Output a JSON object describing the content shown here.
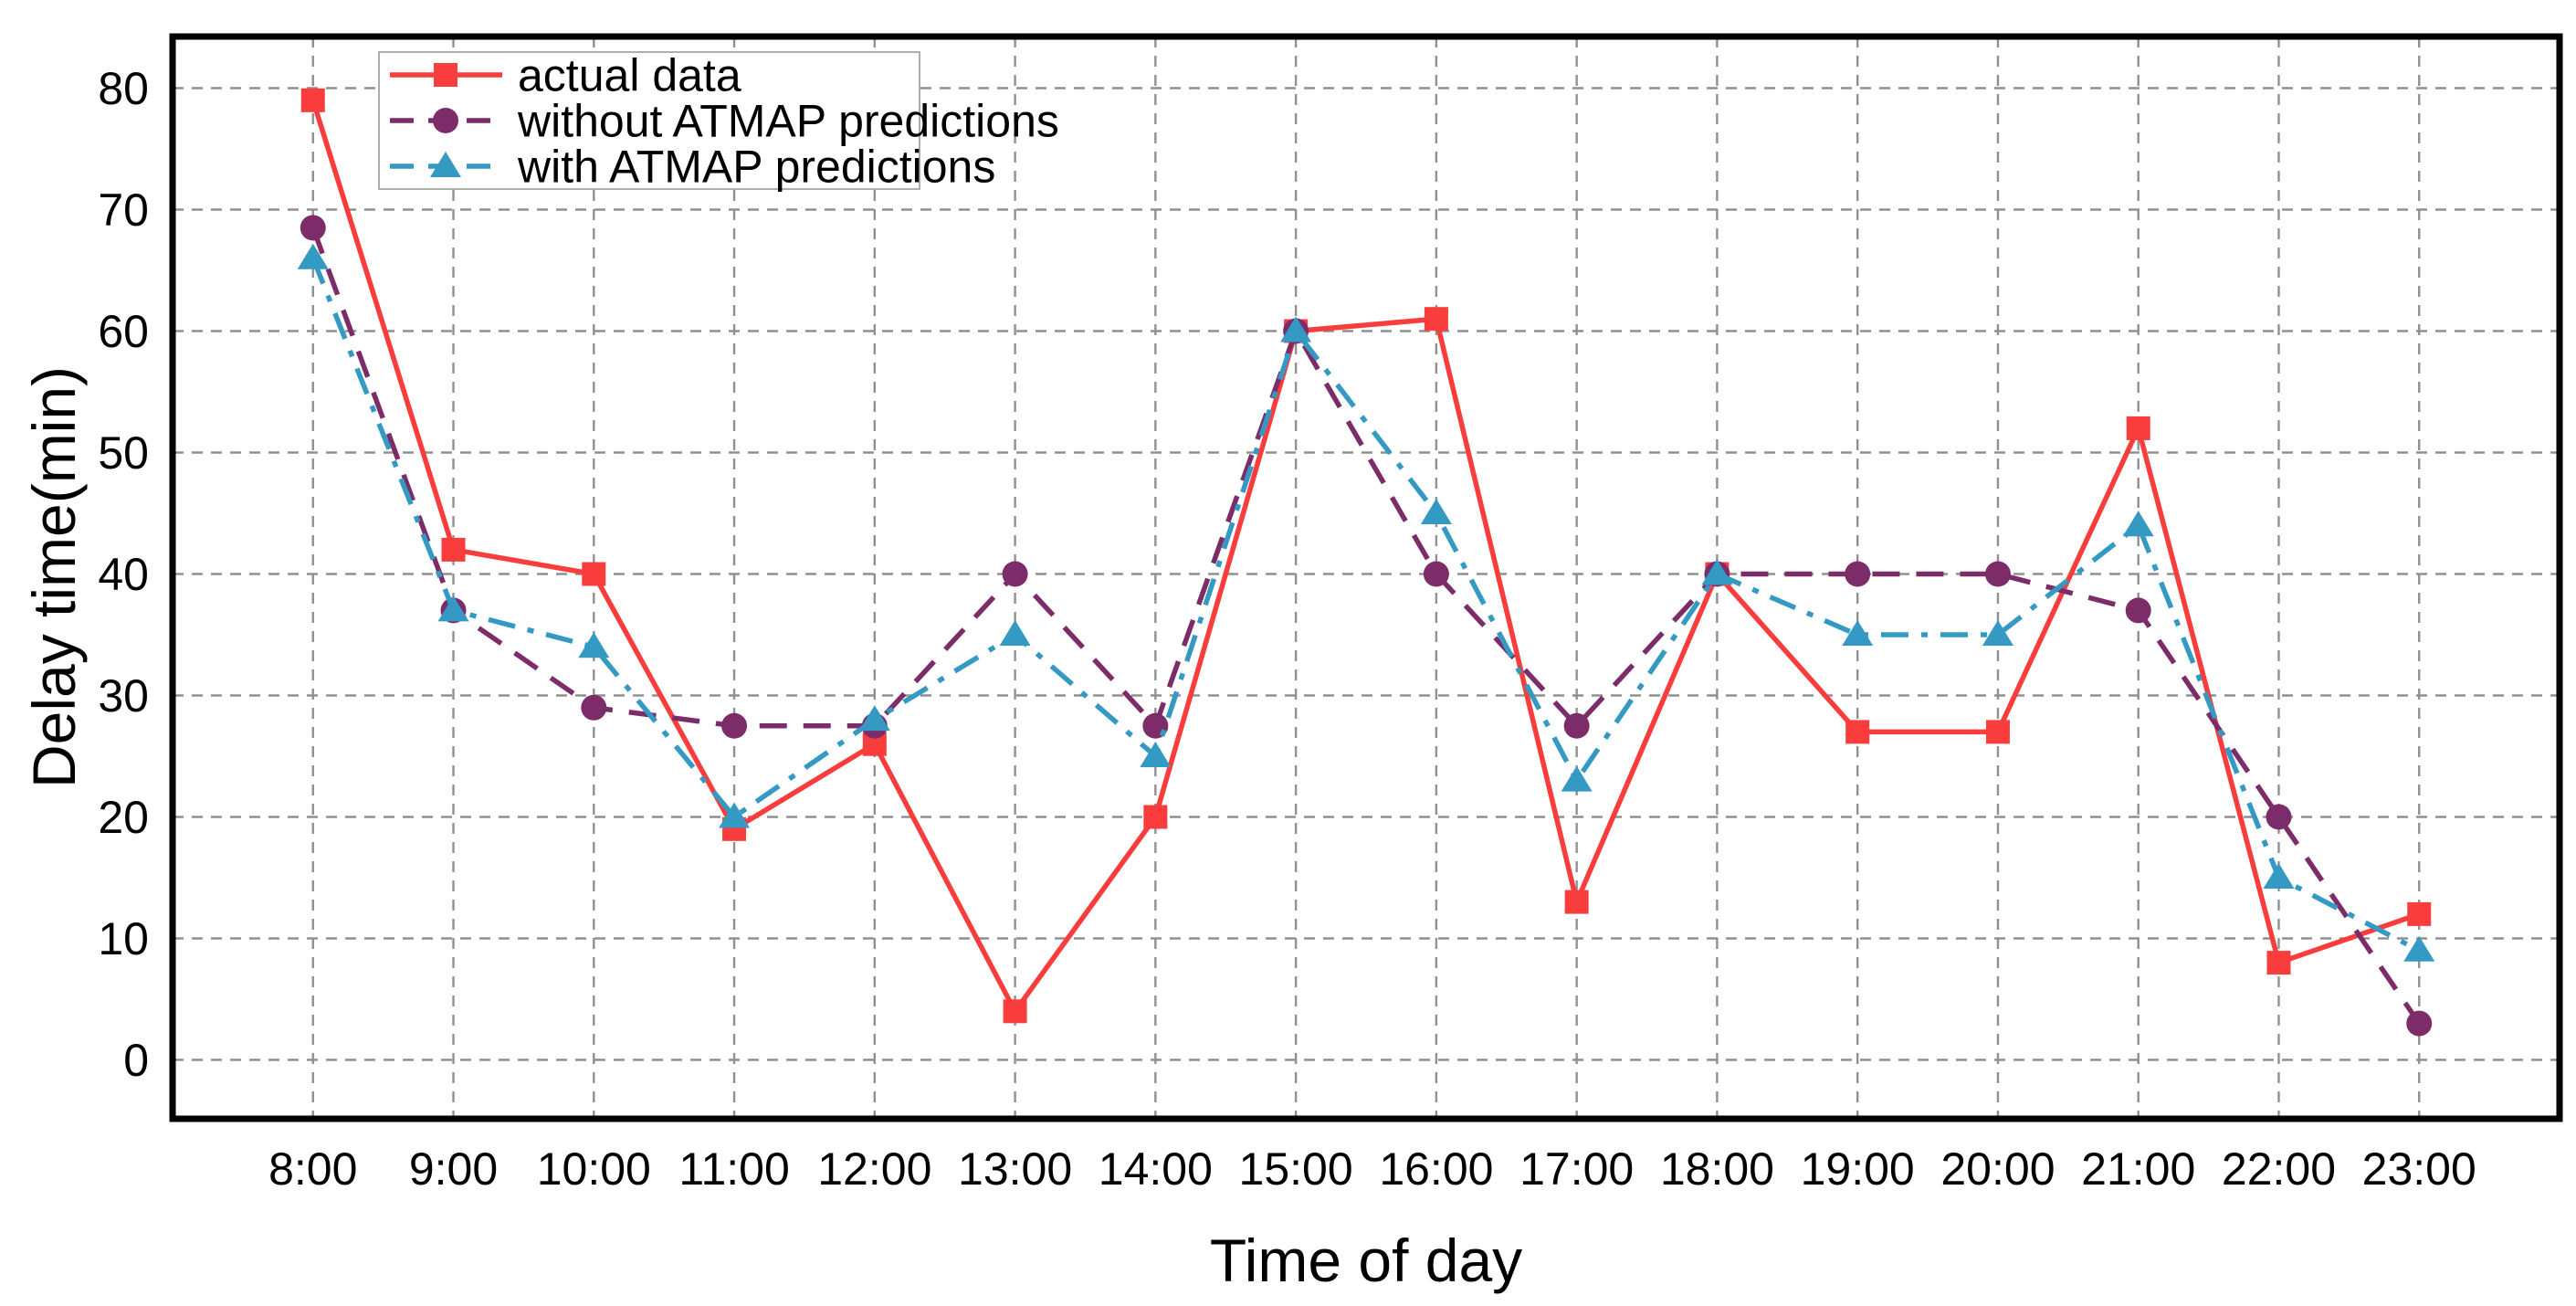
{
  "figure": {
    "background": "#ffffff",
    "title": ""
  },
  "chart_data": {
    "type": "line",
    "title": "",
    "xlabel": "Time of day",
    "ylabel": "Delay time(min)",
    "categories": [
      "8:00",
      "9:00",
      "10:00",
      "11:00",
      "12:00",
      "13:00",
      "14:00",
      "15:00",
      "16:00",
      "17:00",
      "18:00",
      "19:00",
      "20:00",
      "21:00",
      "22:00",
      "23:00"
    ],
    "yticks": [
      0,
      10,
      20,
      30,
      40,
      50,
      60,
      70,
      80
    ],
    "ylim": [
      -5,
      84.3
    ],
    "grid": "dashed gray, both axes",
    "legend_position": "upper-left",
    "series": [
      {
        "name": "actual data",
        "color": "#f93c3c",
        "line_style": "solid",
        "marker": "square",
        "values": [
          79,
          42,
          40,
          19,
          26,
          4,
          20,
          60,
          61,
          13,
          40,
          27,
          27,
          52,
          8,
          12
        ]
      },
      {
        "name": "without ATMAP predictions",
        "color": "#7c2d69",
        "line_style": "dashed",
        "marker": "circle",
        "values": [
          68.5,
          37,
          29,
          27.5,
          27.5,
          40,
          27.5,
          60,
          40,
          27.5,
          40,
          40,
          40,
          37,
          20,
          3
        ]
      },
      {
        "name": "with ATMAP predictions",
        "color": "#3499c3",
        "line_style": "dash-dot",
        "marker": "triangle",
        "values": [
          66,
          37,
          34,
          20,
          28,
          35,
          25,
          60,
          45,
          23,
          40,
          35,
          35,
          44,
          15,
          9
        ]
      }
    ],
    "axis_color": "#000000",
    "grid_color": "#909090",
    "legend_border_color": "#adadad",
    "legend_background": "#ffffff"
  }
}
